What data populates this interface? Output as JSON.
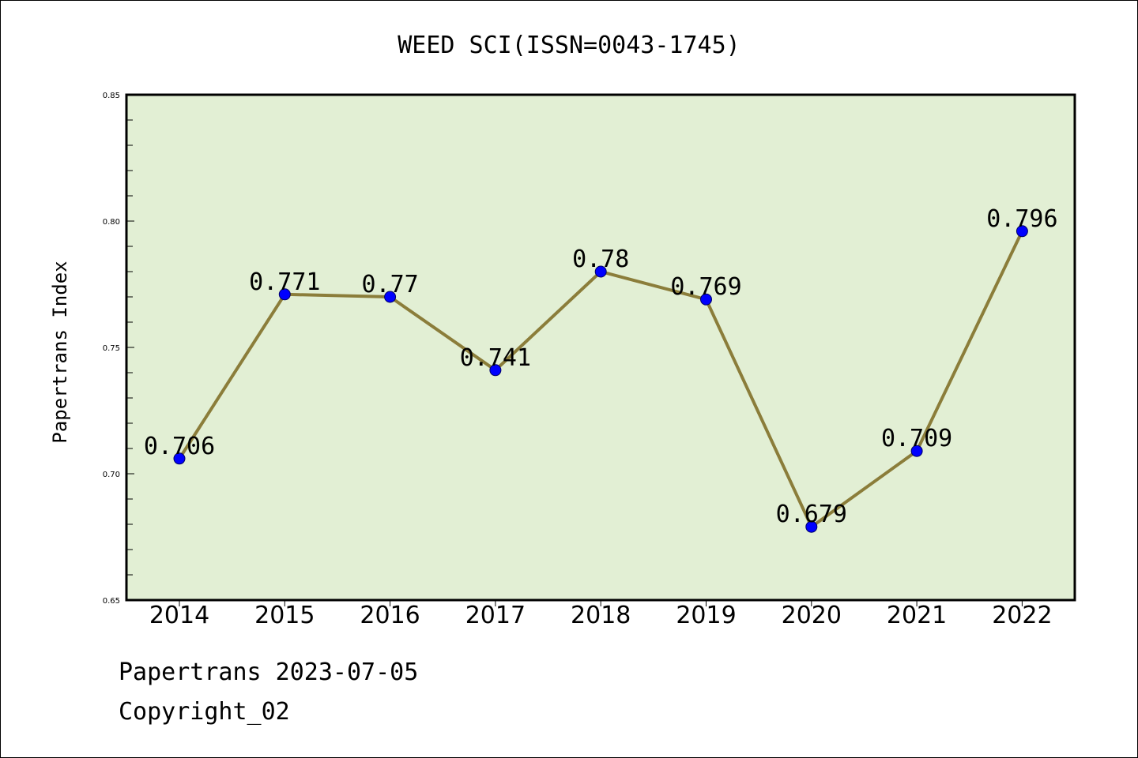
{
  "chart_data": {
    "type": "line",
    "title": "WEED SCI(ISSN=0043-1745)",
    "xlabel": "",
    "ylabel": "Papertrans Index",
    "x": [
      "2014",
      "2015",
      "2016",
      "2017",
      "2018",
      "2019",
      "2020",
      "2021",
      "2022"
    ],
    "series": [
      {
        "values": [
          0.706,
          0.771,
          0.77,
          0.741,
          0.78,
          0.769,
          0.679,
          0.709,
          0.796
        ],
        "labels": [
          "0.706",
          "0.771",
          "0.77",
          "0.741",
          "0.78",
          "0.769",
          "0.679",
          "0.709",
          "0.796"
        ]
      }
    ],
    "ylim": [
      0.65,
      0.85
    ],
    "yticks": [
      0.65,
      0.7,
      0.75,
      0.8,
      0.85
    ],
    "ytick_labels": [
      "0.65",
      "0.70",
      "0.75",
      "0.80",
      "0.85"
    ],
    "grid": false,
    "colors": {
      "plot_background": "#e2efd4",
      "line": "#8b7d3a",
      "marker": "#0000ff",
      "axes": "#000000"
    }
  },
  "footer": {
    "line1": "Papertrans 2023-07-05",
    "line2": "Copyright_02"
  }
}
